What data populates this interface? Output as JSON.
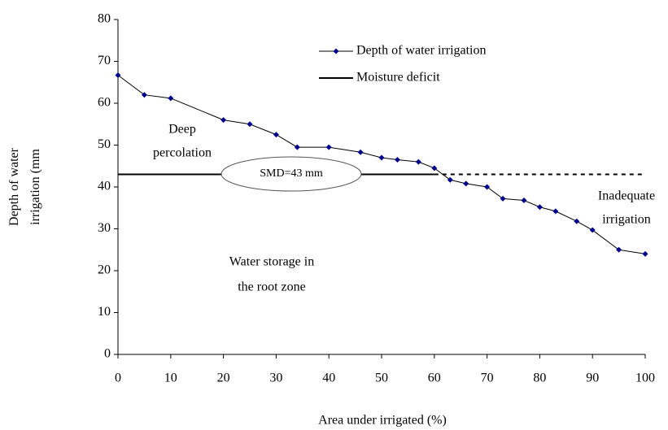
{
  "chart_data": {
    "type": "line",
    "x_label": "Area under irrigated (%)",
    "y_label": [
      "Depth of water",
      "irrigation (mm"
    ],
    "xlim": [
      0,
      100
    ],
    "xticks": [
      0,
      10,
      20,
      30,
      40,
      50,
      60,
      70,
      80,
      90,
      100
    ],
    "ylim": [
      0,
      80
    ],
    "yticks": [
      0,
      10,
      20,
      30,
      40,
      50,
      60,
      70,
      80
    ],
    "series": [
      {
        "name": "Depth of water irrigation",
        "color": "#00008b",
        "x": [
          0,
          5,
          10,
          20,
          25,
          30,
          34,
          40,
          46,
          50,
          53,
          57,
          60,
          63,
          66,
          70,
          73,
          77,
          80,
          83,
          87,
          90,
          95,
          100
        ],
        "values": [
          66.7,
          62,
          61.2,
          56,
          55,
          52.5,
          49.5,
          49.5,
          48.3,
          47,
          46.5,
          46,
          44.5,
          41.7,
          40.8,
          40,
          37.2,
          36.8,
          35.2,
          34.2,
          31.8,
          29.7,
          25,
          24
        ]
      },
      {
        "name": "Moisture deficit",
        "color": "#000000",
        "x": [
          0,
          60,
          100
        ],
        "values": [
          43,
          43,
          43
        ],
        "dash_after": 60
      }
    ],
    "annotations": [
      {
        "lines": [
          "Deep",
          "percolation"
        ]
      },
      {
        "lines": [
          "SMD=43 mm"
        ]
      },
      {
        "lines": [
          "Water storage in",
          "the root zone"
        ]
      },
      {
        "lines": [
          "Inadequate",
          "irrigation"
        ]
      }
    ],
    "legend": "top-center"
  }
}
